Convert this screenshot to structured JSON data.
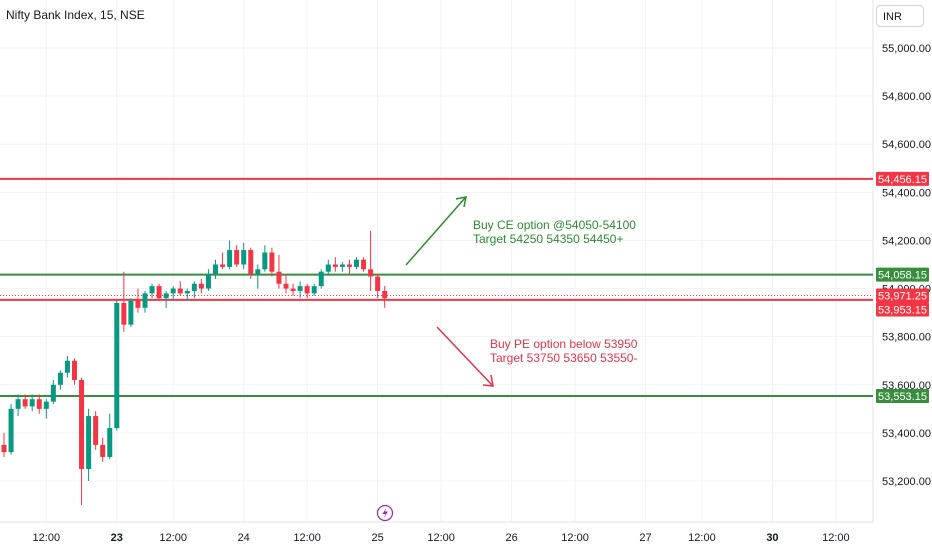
{
  "header": {
    "title": "Nifty Bank Index, 15, NSE",
    "currency": "INR"
  },
  "colors": {
    "up": "#089981",
    "down": "#f23645",
    "green_line": "#388e3c",
    "red_line": "#f23645"
  },
  "chart_data": {
    "type": "candlestick",
    "ylim": [
      53100,
      55100
    ],
    "y_ticks": [
      "53,200.00",
      "53,400.00",
      "53,600.00",
      "53,800.00",
      "54,000.00",
      "54,200.00",
      "54,400.00",
      "54,600.00",
      "54,800.00",
      "55,000.00"
    ],
    "y_tick_values": [
      53200,
      53400,
      53600,
      53800,
      54000,
      54200,
      54400,
      54600,
      54800,
      55000
    ],
    "x_ticks": [
      {
        "label": "12:00",
        "slot": 6,
        "bold": false
      },
      {
        "label": "23",
        "slot": 16,
        "bold": true
      },
      {
        "label": "12:00",
        "slot": 24,
        "bold": false
      },
      {
        "label": "24",
        "slot": 34,
        "bold": false
      },
      {
        "label": "12:00",
        "slot": 43,
        "bold": false
      },
      {
        "label": "25",
        "slot": 53,
        "bold": false
      },
      {
        "label": "12:00",
        "slot": 62,
        "bold": false
      },
      {
        "label": "26",
        "slot": 72,
        "bold": false
      },
      {
        "label": "12:00",
        "slot": 81,
        "bold": false
      },
      {
        "label": "27",
        "slot": 91,
        "bold": false
      },
      {
        "label": "12:00",
        "slot": 99,
        "bold": false
      },
      {
        "label": "30",
        "slot": 109,
        "bold": true
      },
      {
        "label": "12:00",
        "slot": 118,
        "bold": false
      }
    ],
    "candles": [
      [
        53350,
        53400,
        53300,
        53320
      ],
      [
        53320,
        53520,
        53310,
        53500
      ],
      [
        53500,
        53560,
        53470,
        53540
      ],
      [
        53540,
        53560,
        53500,
        53510
      ],
      [
        53510,
        53560,
        53490,
        53540
      ],
      [
        53540,
        53560,
        53480,
        53500
      ],
      [
        53500,
        53540,
        53460,
        53530
      ],
      [
        53530,
        53620,
        53520,
        53600
      ],
      [
        53600,
        53660,
        53580,
        53650
      ],
      [
        53650,
        53720,
        53630,
        53700
      ],
      [
        53700,
        53710,
        53600,
        53620
      ],
      [
        53620,
        53630,
        53100,
        53250
      ],
      [
        53250,
        53500,
        53200,
        53470
      ],
      [
        53470,
        53490,
        53330,
        53350
      ],
      [
        53350,
        53380,
        53280,
        53300
      ],
      [
        53300,
        53480,
        53290,
        53420
      ],
      [
        53420,
        53950,
        53410,
        53940
      ],
      [
        53940,
        54070,
        53820,
        53850
      ],
      [
        53850,
        53960,
        53840,
        53950
      ],
      [
        53950,
        54000,
        53900,
        53920
      ],
      [
        53920,
        53990,
        53900,
        53980
      ],
      [
        53980,
        54020,
        53960,
        54010
      ],
      [
        54010,
        54020,
        53950,
        53960
      ],
      [
        53960,
        53990,
        53920,
        53980
      ],
      [
        53980,
        54010,
        53950,
        54000
      ],
      [
        54000,
        54030,
        53970,
        53980
      ],
      [
        53980,
        54000,
        53950,
        53990
      ],
      [
        53990,
        54030,
        53960,
        54020
      ],
      [
        54020,
        54040,
        53980,
        54000
      ],
      [
        54000,
        54080,
        53990,
        54060
      ],
      [
        54060,
        54120,
        54040,
        54100
      ],
      [
        54100,
        54150,
        54080,
        54090
      ],
      [
        54090,
        54200,
        54080,
        54160
      ],
      [
        54160,
        54180,
        54090,
        54100
      ],
      [
        54100,
        54190,
        54080,
        54160
      ],
      [
        54160,
        54170,
        54040,
        54060
      ],
      [
        54060,
        54100,
        54000,
        54080
      ],
      [
        54080,
        54180,
        54070,
        54150
      ],
      [
        54150,
        54170,
        54050,
        54070
      ],
      [
        54070,
        54140,
        54000,
        54020
      ],
      [
        54020,
        54060,
        53980,
        54000
      ],
      [
        54000,
        54020,
        53970,
        53990
      ],
      [
        53990,
        54030,
        53960,
        54010
      ],
      [
        54010,
        54020,
        53960,
        53980
      ],
      [
        53980,
        54020,
        53970,
        54010
      ],
      [
        54010,
        54080,
        54000,
        54070
      ],
      [
        54070,
        54120,
        54060,
        54100
      ],
      [
        54100,
        54130,
        54070,
        54090
      ],
      [
        54090,
        54110,
        54070,
        54100
      ],
      [
        54100,
        54120,
        54060,
        54090
      ],
      [
        54090,
        54130,
        54080,
        54120
      ],
      [
        54120,
        54130,
        54070,
        54080
      ],
      [
        54080,
        54240,
        53990,
        54050
      ],
      [
        54050,
        54060,
        53960,
        53990
      ],
      [
        53990,
        54010,
        53920,
        53960
      ]
    ],
    "levels": [
      {
        "value": 54456.15,
        "label": "54,456.15",
        "color": "#f23645"
      },
      {
        "value": 54058.15,
        "label": "54,058.15",
        "color": "#388e3c"
      },
      {
        "value": 53953.15,
        "label": "53,953.15",
        "color": "#f23645"
      },
      {
        "value": 53553.15,
        "label": "53,553.15",
        "color": "#388e3c"
      }
    ],
    "current_price": {
      "value": 53971.25,
      "label": "53,971.25",
      "color": "#f23645"
    }
  },
  "annotations": {
    "buy_ce_1": "Buy CE option @54050-54100",
    "buy_ce_2": "Target 54250 54350 54450+",
    "buy_pe_1": "Buy PE option below 53950",
    "buy_pe_2": "Target 53750 53650 53550-"
  }
}
